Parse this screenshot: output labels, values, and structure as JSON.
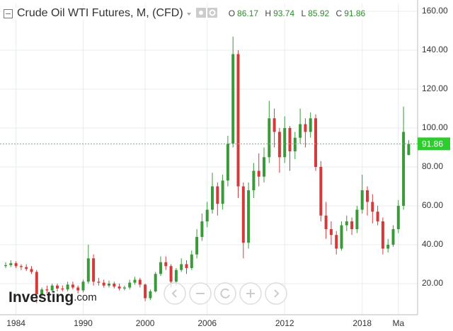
{
  "chart_data": {
    "type": "candlestick",
    "title": "Crude Oil WTI Futures, M, (CFD)",
    "ohlc_labels": [
      "O",
      "H",
      "L",
      "C"
    ],
    "logo": "Investing",
    "logo_suffix": ".com",
    "up_color": "#3a9a3a",
    "down_color": "#d33a3a",
    "grid": true,
    "categories": [
      null,
      null,
      "1984",
      null,
      null,
      null,
      null,
      null,
      null,
      null,
      null,
      null,
      null,
      null,
      null,
      "1990",
      null,
      null,
      null,
      null,
      null,
      null,
      null,
      null,
      null,
      null,
      null,
      "2000",
      null,
      null,
      null,
      null,
      null,
      null,
      null,
      null,
      null,
      null,
      null,
      "2006",
      null,
      null,
      null,
      null,
      null,
      null,
      null,
      null,
      null,
      null,
      null,
      null,
      null,
      null,
      "2012",
      null,
      null,
      null,
      null,
      null,
      null,
      null,
      null,
      null,
      null,
      null,
      null,
      null,
      null,
      "2018",
      null,
      null,
      null,
      null,
      null,
      null,
      "Ma",
      null,
      null
    ],
    "open": [
      29,
      29.5,
      30.5,
      29,
      28.5,
      27.5,
      26,
      14.5,
      17,
      16.5,
      19,
      17.5,
      17,
      19.5,
      18,
      16.5,
      21,
      33,
      21,
      20.5,
      19,
      20,
      18.5,
      17.5,
      18,
      20.5,
      22,
      19.5,
      12.5,
      16,
      25,
      31,
      29,
      21,
      27,
      30,
      28,
      35,
      44,
      52,
      58,
      70,
      61,
      73,
      92,
      138,
      70,
      41,
      68,
      78,
      75,
      85,
      105,
      98,
      85,
      100,
      88,
      95,
      102,
      98,
      105,
      80,
      55,
      48,
      45,
      38,
      50,
      52,
      48,
      58,
      68,
      62,
      57,
      52,
      38,
      40,
      48,
      60,
      86.17
    ],
    "high": [
      31,
      32,
      31.5,
      30,
      30,
      29,
      27,
      18,
      19,
      20,
      20,
      19,
      21,
      21,
      19,
      22,
      40,
      35,
      23,
      22,
      21.5,
      21,
      20,
      19,
      22,
      23.5,
      23,
      20,
      17,
      26,
      34,
      34,
      30,
      28,
      33,
      32,
      37,
      48,
      56,
      62,
      77,
      72,
      76,
      96,
      147,
      140,
      72,
      72,
      82,
      87,
      90,
      114,
      110,
      100,
      106,
      101,
      98,
      110,
      105,
      108,
      107,
      83,
      62,
      52,
      47,
      52,
      55,
      54,
      60,
      76,
      70,
      66,
      60,
      54,
      43,
      50,
      63,
      111,
      93.74
    ],
    "low": [
      28,
      28.5,
      28,
      27,
      26.5,
      25,
      10,
      13,
      15,
      15.5,
      16,
      16,
      16,
      17,
      15,
      15.5,
      20,
      19,
      19,
      18,
      18,
      17.5,
      16.5,
      16.5,
      17,
      19.5,
      18,
      11,
      11.5,
      15.5,
      24,
      27,
      18,
      19,
      26,
      25,
      27,
      33,
      42,
      49,
      56,
      55,
      58,
      70,
      90,
      64,
      33,
      38,
      64,
      70,
      72,
      82,
      90,
      77,
      82,
      78,
      84,
      92,
      90,
      95,
      78,
      52,
      43,
      40,
      35,
      37,
      47,
      45,
      46,
      56,
      55,
      51,
      50,
      35,
      36,
      39,
      46,
      58,
      85.92
    ],
    "close": [
      29.5,
      30.5,
      29,
      28.5,
      27.5,
      26,
      14.5,
      17,
      16.5,
      19,
      17.5,
      17,
      19.5,
      18,
      16.5,
      21,
      33,
      21,
      20.5,
      19,
      20,
      18.5,
      17.5,
      18,
      20.5,
      22,
      19.5,
      12.5,
      16,
      25,
      31,
      29,
      21,
      27,
      30,
      28,
      35,
      44,
      52,
      58,
      70,
      61,
      73,
      92,
      138,
      70,
      41,
      68,
      78,
      75,
      85,
      105,
      98,
      85,
      100,
      88,
      95,
      102,
      98,
      105,
      80,
      55,
      48,
      45,
      38,
      50,
      52,
      48,
      58,
      68,
      62,
      57,
      52,
      38,
      40,
      48,
      60,
      98,
      91.86
    ],
    "ylim": [
      4,
      164
    ],
    "yticks": [
      {
        "value": 20,
        "label": "20.00"
      },
      {
        "value": 40,
        "label": "40.00"
      },
      {
        "value": 60,
        "label": "60.00"
      },
      {
        "value": 80,
        "label": "80.00"
      },
      {
        "value": 100,
        "label": "100.00"
      },
      {
        "value": 120,
        "label": "120.00"
      },
      {
        "value": 140,
        "label": "140.00"
      },
      {
        "value": 160,
        "label": "160.00"
      }
    ]
  }
}
